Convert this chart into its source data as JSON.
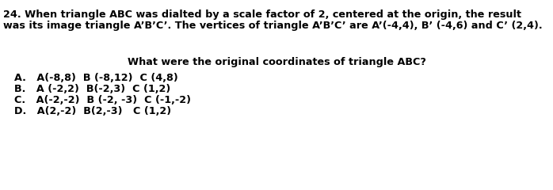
{
  "title_line1": "24. When triangle ABC was dialted by a scale factor of 2, centered at the origin, the result",
  "title_line2": "was its image triangle A’B’C’. The vertices of triangle A’B’C’ are A’(-4,4), B’ (-4,6) and C’ (2,4).",
  "question": "What were the original coordinates of triangle ABC?",
  "options": [
    "A.   A(-8,8)  B (-8,12)  C (4,8)",
    "B.   A (-2,2)  B(-2,3)  C (1,2)",
    "C.   A(-2,-2)  B (-2, -3)  C (-1,-2)",
    "D.   A(2,-2)  B(2,-3)   C (1,2)"
  ],
  "bg_color": "#ffffff",
  "text_color": "#000000",
  "title_fontsize": 9.2,
  "question_fontsize": 9.2,
  "option_fontsize": 9.2
}
